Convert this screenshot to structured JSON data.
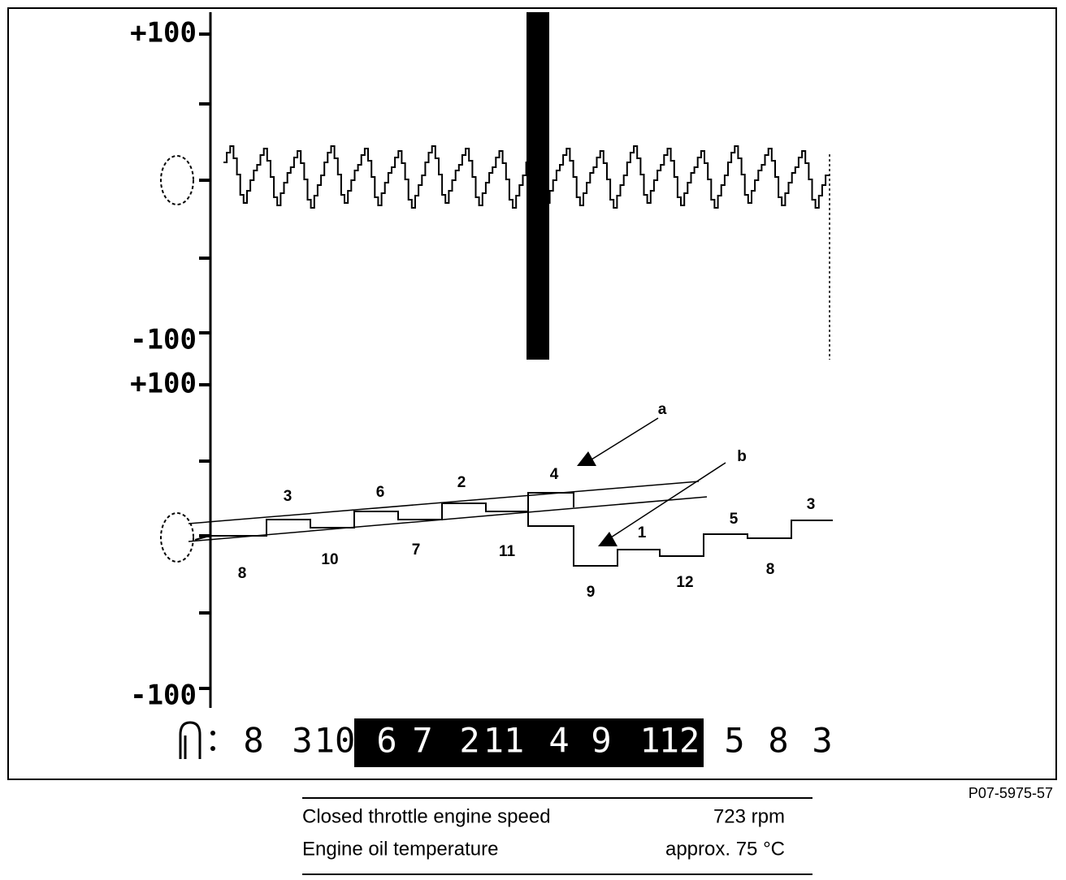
{
  "upper_scale": {
    "top": "+100",
    "bottom": "-100"
  },
  "lower_scale": {
    "top": "+100",
    "bottom": "-100"
  },
  "firing_order": [
    "8",
    "3",
    "10",
    "6",
    "7",
    "2",
    "11",
    "4",
    "9",
    "1",
    "12",
    "5",
    "8",
    "3"
  ],
  "trace_labels_above": [
    "3",
    "6",
    "2",
    "4",
    "1",
    "5",
    "3"
  ],
  "trace_labels_below": [
    "8",
    "10",
    "7",
    "11",
    "9",
    "12",
    "8"
  ],
  "annotations": [
    "a",
    "b"
  ],
  "figure_code": "P07-5975-57",
  "caption": {
    "rows": [
      [
        "Closed throttle engine speed",
        "723 rpm"
      ],
      [
        "Engine oil temperature",
        "approx. 75 °C"
      ]
    ]
  }
}
